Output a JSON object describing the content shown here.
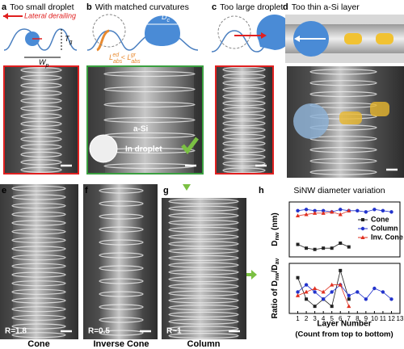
{
  "panels": [
    {
      "letter": "a",
      "title": "Too small droplet"
    },
    {
      "letter": "b",
      "title": "With matched curvatures"
    },
    {
      "letter": "c",
      "title": "Too large droplet"
    },
    {
      "letter": "d",
      "title": "Too thin a-Si layer"
    },
    {
      "letter": "e",
      "ratio": "R=1.8",
      "caption": "Cone"
    },
    {
      "letter": "f",
      "ratio": "R=0.5",
      "caption": "Inverse Cone"
    },
    {
      "letter": "g",
      "ratio": "R~1",
      "caption": "Column"
    },
    {
      "letter": "h"
    }
  ],
  "schematic": {
    "derailing": "Lateral derailing",
    "tg": [
      "T",
      "g"
    ],
    "wp": [
      "W",
      "p"
    ],
    "dc": [
      "D",
      "c"
    ],
    "labs": [
      "L",
      "abs",
      "ed",
      " < ",
      "L",
      "abs",
      "gr"
    ]
  },
  "micrograph_labels": {
    "asi": "a-Si",
    "droplet": "In droplet"
  },
  "chart_data": [
    {
      "type": "line",
      "title": "SiNW diameter variation",
      "ylabel": [
        "D",
        "nw",
        " (nm)"
      ],
      "x": [
        1,
        2,
        3,
        4,
        5,
        6,
        7,
        8,
        9,
        10,
        11,
        12
      ],
      "xlim": [
        0,
        13
      ],
      "ylim": [
        48,
        92
      ],
      "legend": "right",
      "series": [
        {
          "name": "Cone",
          "color": "#222222",
          "marker": "square",
          "values": [
            58,
            55,
            54,
            55,
            55,
            59,
            56,
            null,
            null,
            null,
            null,
            null
          ]
        },
        {
          "name": "Column",
          "color": "#2233cc",
          "marker": "circle",
          "values": [
            85,
            86,
            85,
            85,
            84,
            86,
            85,
            85,
            84,
            86,
            85,
            84
          ]
        },
        {
          "name": "Inv. Cone",
          "color": "#e03020",
          "marker": "triangle",
          "values": [
            81,
            82,
            83,
            83,
            84,
            82,
            85,
            null,
            null,
            null,
            null,
            null
          ]
        }
      ]
    },
    {
      "type": "line",
      "ylabel": [
        "Ratio of D",
        "nw",
        "/D",
        "av"
      ],
      "xlabel": "Layer Number",
      "xnote": "(Count from top to bottom)",
      "x": [
        1,
        2,
        3,
        4,
        5,
        6,
        7,
        8,
        9,
        10,
        11,
        12
      ],
      "xlim": [
        0,
        13
      ],
      "ylim": [
        0.94,
        1.08
      ],
      "xticks": [
        1,
        2,
        3,
        4,
        5,
        6,
        7,
        8,
        9,
        10,
        11,
        12,
        13
      ],
      "series": [
        {
          "color": "#222222",
          "marker": "square",
          "values": [
            1.04,
            0.98,
            0.96,
            0.98,
            0.96,
            1.06,
            0.98,
            null,
            null,
            null,
            null,
            null
          ]
        },
        {
          "color": "#2233cc",
          "marker": "circle",
          "values": [
            1.0,
            1.02,
            1.0,
            0.98,
            1.0,
            1.02,
            0.99,
            1.0,
            0.98,
            1.01,
            1.0,
            0.98
          ]
        },
        {
          "color": "#e03020",
          "marker": "triangle",
          "values": [
            0.99,
            1.0,
            1.01,
            1.0,
            1.02,
            1.02,
            0.96,
            null,
            null,
            null,
            null,
            null
          ]
        }
      ]
    }
  ]
}
